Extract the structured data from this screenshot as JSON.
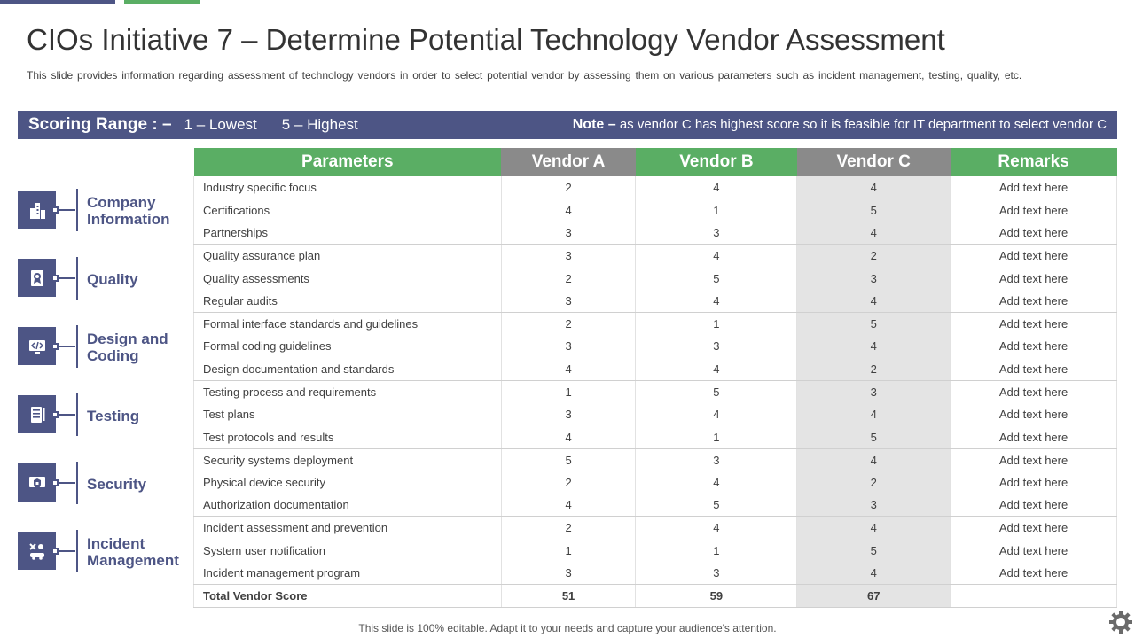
{
  "slide": {
    "title": "CIOs Initiative 7 – Determine Potential Technology Vendor Assessment",
    "subtitle": "This slide provides information regarding assessment of technology vendors in order to select potential vendor by assessing them on various parameters such as incident management, testing, quality, etc.",
    "footer": "This slide is 100% editable. Adapt it to your needs and capture your audience's attention."
  },
  "scoring": {
    "label": "Scoring Range : –",
    "lowest": "1 – Lowest",
    "highest": "5 – Highest",
    "note_label": "Note –",
    "note_text": " as vendor C has highest score so it is feasible for IT department to select vendor C"
  },
  "categories": [
    {
      "label": "Company Information",
      "icon": "building-icon"
    },
    {
      "label": "Quality",
      "icon": "quality-badge-icon"
    },
    {
      "label": "Design and Coding",
      "icon": "code-monitor-icon"
    },
    {
      "label": "Testing",
      "icon": "checklist-icon"
    },
    {
      "label": "Security",
      "icon": "shield-icon"
    },
    {
      "label": "Incident Management",
      "icon": "incident-icon"
    }
  ],
  "table": {
    "headers": [
      "Parameters",
      "Vendor A",
      "Vendor B",
      "Vendor C",
      "Remarks"
    ],
    "rows": [
      [
        "Industry specific focus",
        "2",
        "4",
        "4",
        "Add text here"
      ],
      [
        "Certifications",
        "4",
        "1",
        "5",
        "Add text here"
      ],
      [
        "Partnerships",
        "3",
        "3",
        "4",
        "Add text here"
      ],
      [
        "Quality assurance plan",
        "3",
        "4",
        "2",
        "Add text here"
      ],
      [
        "Quality assessments",
        "2",
        "5",
        "3",
        "Add text here"
      ],
      [
        "Regular audits",
        "3",
        "4",
        "4",
        "Add text here"
      ],
      [
        "Formal interface standards and guidelines",
        "2",
        "1",
        "5",
        "Add text here"
      ],
      [
        "Formal coding guidelines",
        "3",
        "3",
        "4",
        "Add text here"
      ],
      [
        "Design documentation and standards",
        "4",
        "4",
        "2",
        "Add text here"
      ],
      [
        "Testing process and requirements",
        "1",
        "5",
        "3",
        "Add text here"
      ],
      [
        "Test plans",
        "3",
        "4",
        "4",
        "Add text here"
      ],
      [
        "Test protocols and results",
        "4",
        "1",
        "5",
        "Add text here"
      ],
      [
        "Security systems deployment",
        "5",
        "3",
        "4",
        "Add text here"
      ],
      [
        "Physical device security",
        "2",
        "4",
        "2",
        "Add text here"
      ],
      [
        "Authorization documentation",
        "4",
        "5",
        "3",
        "Add text here"
      ],
      [
        "Incident assessment and prevention",
        "2",
        "4",
        "4",
        "Add text here"
      ],
      [
        "System user notification",
        "1",
        "1",
        "5",
        "Add text here"
      ],
      [
        "Incident management program",
        "3",
        "3",
        "4",
        "Add text here"
      ]
    ],
    "total": [
      "Total Vendor Score",
      "51",
      "59",
      "67",
      ""
    ]
  },
  "colors": {
    "primary": "#4d5585",
    "accent": "#5aae64",
    "header_grey": "#8a8a8a",
    "highlight": "#e4e4e4"
  }
}
